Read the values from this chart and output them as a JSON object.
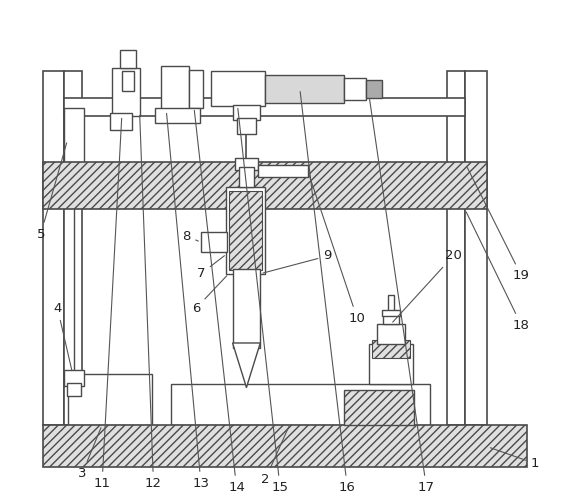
{
  "fig_width": 5.71,
  "fig_height": 5.04,
  "dpi": 100,
  "bg_color": "#ffffff",
  "lc": "#4a4a4a",
  "lw": 1.0,
  "label_fontsize": 9.5,
  "label_color": "#222222"
}
